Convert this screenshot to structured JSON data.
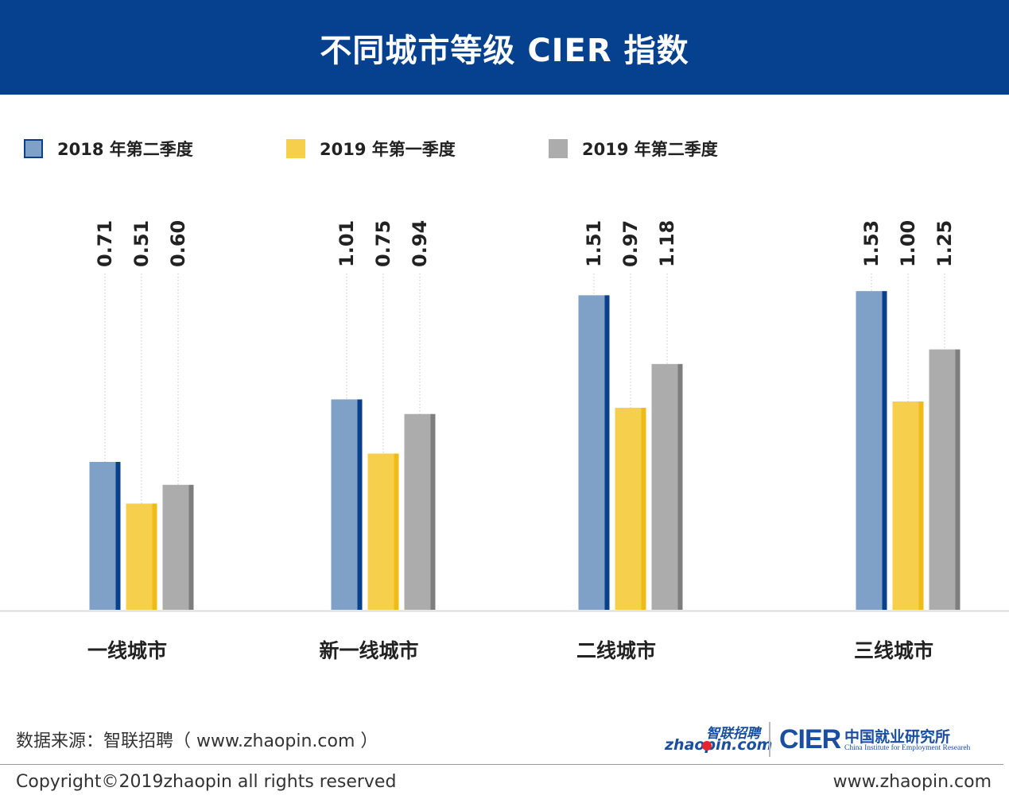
{
  "header": {
    "title": "不同城市等级 CIER 指数"
  },
  "chart_data": {
    "type": "bar",
    "title": "不同城市等级 CIER 指数",
    "categories": [
      "一线城市",
      "新一线城市",
      "二线城市",
      "三线城市"
    ],
    "series": [
      {
        "name": "2018 年第二季度",
        "color": "#7fa1c8",
        "edge": "#0a3f8e",
        "values": [
          0.71,
          1.01,
          1.51,
          1.53
        ],
        "labels": [
          "0.71",
          "1.01",
          "1.51",
          "1.53"
        ]
      },
      {
        "name": "2019 年第一季度",
        "color": "#f6cf4c",
        "edge": "#efbb16",
        "values": [
          0.51,
          0.75,
          0.97,
          1.0
        ],
        "labels": [
          "0.51",
          "0.75",
          "0.97",
          "1.00"
        ]
      },
      {
        "name": "2019 年第二季度",
        "color": "#acacac",
        "edge": "#7e7e7e",
        "values": [
          0.6,
          0.94,
          1.18,
          1.25
        ],
        "labels": [
          "0.60",
          "0.94",
          "1.18",
          "1.25"
        ]
      }
    ],
    "xlabel": "",
    "ylabel": "",
    "grid": false,
    "legend_position": "top-left",
    "data_labels": "top-rotated"
  },
  "footer": {
    "source": "数据来源：智联招聘（ www.zhaopin.com ）",
    "copyright": "Copyright©2019zhaopin all rights reserved",
    "site": "www.zhaopin.com"
  },
  "logos": {
    "zhaopin_cn": "智联招聘",
    "zhaopin_en": "zhaopin.com",
    "cier_mark": "CIER",
    "cier_cn": "中国就业研究所",
    "cier_en": "China Institute for Employment Researeh"
  }
}
